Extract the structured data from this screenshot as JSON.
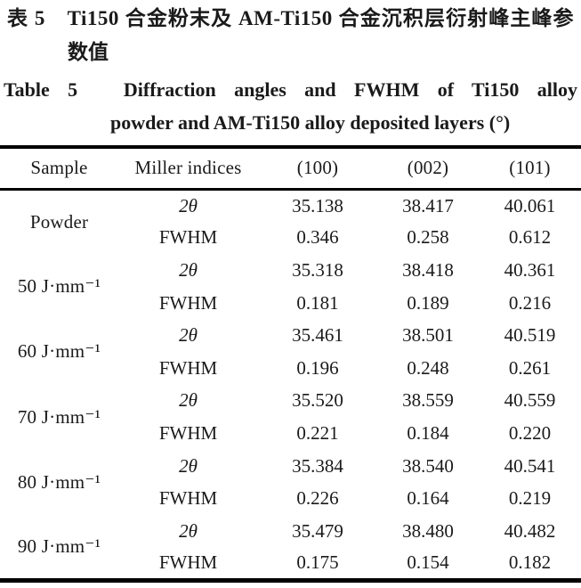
{
  "caption_zh": {
    "line1": "表 5　Ti150 合金粉末及 AM-Ti150 合金沉积层衍射峰主峰参",
    "line2": "数值"
  },
  "caption_en": {
    "line1": "Table 5　Diffraction angles and FWHM of Ti150 alloy",
    "line2": "powder and AM-Ti150 alloy deposited layers (°)"
  },
  "table": {
    "headers": [
      "Sample",
      "Miller indices",
      "(100)",
      "(002)",
      "(101)"
    ],
    "groups": [
      {
        "sample": "Powder",
        "rows": [
          {
            "param": "2θ",
            "values": [
              "35.138",
              "38.417",
              "40.061"
            ]
          },
          {
            "param": "FWHM",
            "values": [
              "0.346",
              "0.258",
              "0.612"
            ]
          }
        ]
      },
      {
        "sample": "50 J·mm⁻¹",
        "rows": [
          {
            "param": "2θ",
            "values": [
              "35.318",
              "38.418",
              "40.361"
            ]
          },
          {
            "param": "FWHM",
            "values": [
              "0.181",
              "0.189",
              "0.216"
            ]
          }
        ]
      },
      {
        "sample": "60 J·mm⁻¹",
        "rows": [
          {
            "param": "2θ",
            "values": [
              "35.461",
              "38.501",
              "40.519"
            ]
          },
          {
            "param": "FWHM",
            "values": [
              "0.196",
              "0.248",
              "0.261"
            ]
          }
        ]
      },
      {
        "sample": "70 J·mm⁻¹",
        "rows": [
          {
            "param": "2θ",
            "values": [
              "35.520",
              "38.559",
              "40.559"
            ]
          },
          {
            "param": "FWHM",
            "values": [
              "0.221",
              "0.184",
              "0.220"
            ]
          }
        ]
      },
      {
        "sample": "80 J·mm⁻¹",
        "rows": [
          {
            "param": "2θ",
            "values": [
              "35.384",
              "38.540",
              "40.541"
            ]
          },
          {
            "param": "FWHM",
            "values": [
              "0.226",
              "0.164",
              "0.219"
            ]
          }
        ]
      },
      {
        "sample": "90 J·mm⁻¹",
        "rows": [
          {
            "param": "2θ",
            "values": [
              "35.479",
              "38.480",
              "40.482"
            ]
          },
          {
            "param": "FWHM",
            "values": [
              "0.175",
              "0.154",
              "0.182"
            ]
          }
        ]
      }
    ]
  },
  "colors": {
    "text": "#1a1a1a",
    "rule": "#000000",
    "background": "#ffffff"
  }
}
